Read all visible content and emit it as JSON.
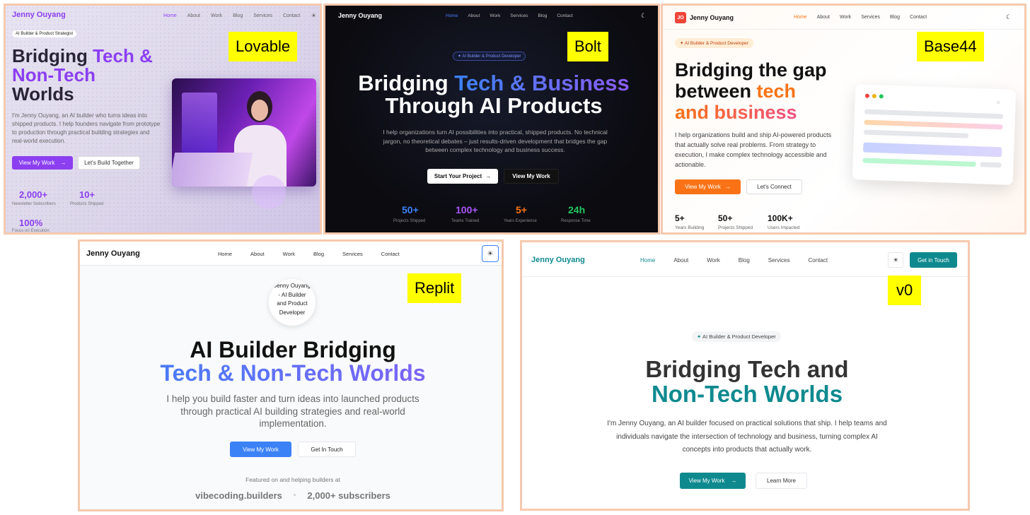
{
  "lovable": {
    "tag": "Lovable",
    "brand": "Jenny Ouyang",
    "nav": [
      "Home",
      "About",
      "Work",
      "Blog",
      "Services",
      "Contact"
    ],
    "badge": "AI Builder & Product Strategist",
    "title_line1a": "Bridging ",
    "title_line1b": "Tech &",
    "title_line2": "Non-Tech",
    "title_line3": "Worlds",
    "body": "I'm Jenny Ouyang, an AI builder who turns ideas into shipped products. I help founders navigate from prototype to production through practical building strategies and real-world execution.",
    "cta_primary": "View My Work",
    "cta_secondary": "Let's Build Together",
    "stats": [
      {
        "value": "2,000+",
        "label": "Newsletter Subscribers"
      },
      {
        "value": "10+",
        "label": "Products Shipped"
      },
      {
        "value": "100%",
        "label": "Focus on Execution"
      }
    ],
    "accent": "#8b3ff0"
  },
  "bolt": {
    "tag": "Bolt",
    "brand": "Jenny Ouyang",
    "nav": [
      "Home",
      "About",
      "Work",
      "Services",
      "Blog",
      "Contact"
    ],
    "badge": "AI Builder & Product Developer",
    "title_line1a": "Bridging ",
    "title_line1b": "Tech & Business",
    "title_line2": "Through AI Products",
    "body": "I help organizations turn AI possibilities into practical, shipped products. No technical jargon, no theoretical debates – just results-driven development that bridges the gap between complex technology and business success.",
    "cta_primary": "Start Your Project",
    "cta_secondary": "View My Work",
    "stats": [
      {
        "value": "50+",
        "label": "Projects Shipped",
        "color": "#3b82f6"
      },
      {
        "value": "100+",
        "label": "Teams Trained",
        "color": "#a855f7"
      },
      {
        "value": "5+",
        "label": "Years Experience",
        "color": "#f97316"
      },
      {
        "value": "24h",
        "label": "Response Time",
        "color": "#22c55e"
      }
    ]
  },
  "base44": {
    "tag": "Base44",
    "logo": "JO",
    "brand": "Jenny Ouyang",
    "nav": [
      "Home",
      "About",
      "Work",
      "Services",
      "Blog",
      "Contact"
    ],
    "badge": "AI Builder & Product Developer",
    "title_line1": "Bridging the gap",
    "title_line2a": "between ",
    "title_line2b": "tech",
    "title_line3": "and business",
    "body": "I help organizations build and ship AI-powered products that actually solve real problems. From strategy to execution, I make complex technology accessible and actionable.",
    "cta_primary": "View My Work",
    "cta_secondary": "Let's Connect",
    "stats": [
      {
        "value": "5+",
        "label": "Years Building"
      },
      {
        "value": "50+",
        "label": "Projects Shipped"
      },
      {
        "value": "100K+",
        "label": "Users Impacted"
      }
    ]
  },
  "replit": {
    "tag": "Replit",
    "brand": "Jenny Ouyang",
    "nav": [
      "Home",
      "About",
      "Work",
      "Blog",
      "Services",
      "Contact"
    ],
    "avatar_alt": "Jenny Ouyang - AI Builder and Product Developer",
    "title_line1": "AI Builder Bridging",
    "title_line2": "Tech & Non-Tech Worlds",
    "body": "I help you build faster and turn ideas into launched products through practical AI building strategies and real-world implementation.",
    "cta_primary": "View My Work",
    "cta_secondary": "Get In Touch",
    "featured_label": "Featured on and helping builders at",
    "featured_items": [
      "vibecoding.builders",
      "2,000+ subscribers"
    ]
  },
  "v0": {
    "tag": "v0",
    "brand": "Jenny Ouyang",
    "nav": [
      "Home",
      "About",
      "Work",
      "Blog",
      "Services",
      "Contact"
    ],
    "header_cta": "Get in Touch",
    "badge": "AI Builder & Product Developer",
    "title_line1": "Bridging Tech and",
    "title_line2": "Non-Tech Worlds",
    "body": "I'm Jenny Ouyang, an AI builder focused on practical solutions that ship. I help teams and individuals navigate the intersection of technology and business, turning complex AI concepts into products that actually work.",
    "cta_primary": "View My Work",
    "cta_secondary": "Learn More",
    "accent": "#0e8a8f"
  }
}
